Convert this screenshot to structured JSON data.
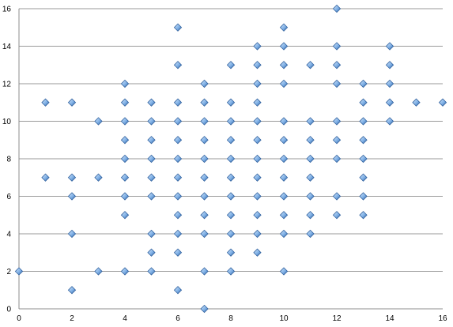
{
  "chart_data": {
    "type": "scatter",
    "title": "",
    "xlabel": "",
    "ylabel": "",
    "xlim": [
      0,
      16
    ],
    "ylim": [
      0,
      16
    ],
    "x_ticks": [
      "0",
      "2",
      "4",
      "6",
      "8",
      "10",
      "12",
      "14",
      "16"
    ],
    "y_ticks": [
      "0",
      "2",
      "4",
      "6",
      "8",
      "10",
      "12",
      "14",
      "16"
    ],
    "grid": "horizontal",
    "legend": "none",
    "marker": "diamond",
    "colors": {
      "marker_fill": "#7fb0e6",
      "marker_stroke": "#2d5e9c",
      "marker_highlight": "#d8e9fb",
      "grid": "#9a9a9a",
      "axis": "#8c8c8c"
    },
    "series": [
      {
        "points": [
          [
            0,
            2
          ],
          [
            1,
            7
          ],
          [
            1,
            11
          ],
          [
            2,
            1
          ],
          [
            2,
            4
          ],
          [
            2,
            6
          ],
          [
            2,
            7
          ],
          [
            2,
            11
          ],
          [
            3,
            2
          ],
          [
            3,
            7
          ],
          [
            3,
            10
          ],
          [
            4,
            2
          ],
          [
            4,
            5
          ],
          [
            4,
            6
          ],
          [
            4,
            7
          ],
          [
            4,
            8
          ],
          [
            4,
            9
          ],
          [
            4,
            10
          ],
          [
            4,
            11
          ],
          [
            4,
            12
          ],
          [
            5,
            2
          ],
          [
            5,
            3
          ],
          [
            5,
            4
          ],
          [
            5,
            6
          ],
          [
            5,
            7
          ],
          [
            5,
            8
          ],
          [
            5,
            9
          ],
          [
            5,
            10
          ],
          [
            5,
            11
          ],
          [
            6,
            1
          ],
          [
            6,
            3
          ],
          [
            6,
            4
          ],
          [
            6,
            5
          ],
          [
            6,
            6
          ],
          [
            6,
            7
          ],
          [
            6,
            8
          ],
          [
            6,
            9
          ],
          [
            6,
            10
          ],
          [
            6,
            11
          ],
          [
            6,
            13
          ],
          [
            6,
            15
          ],
          [
            7,
            0
          ],
          [
            7,
            2
          ],
          [
            7,
            4
          ],
          [
            7,
            5
          ],
          [
            7,
            6
          ],
          [
            7,
            7
          ],
          [
            7,
            8
          ],
          [
            7,
            9
          ],
          [
            7,
            10
          ],
          [
            7,
            11
          ],
          [
            7,
            12
          ],
          [
            8,
            2
          ],
          [
            8,
            3
          ],
          [
            8,
            4
          ],
          [
            8,
            5
          ],
          [
            8,
            6
          ],
          [
            8,
            7
          ],
          [
            8,
            8
          ],
          [
            8,
            9
          ],
          [
            8,
            10
          ],
          [
            8,
            11
          ],
          [
            8,
            13
          ],
          [
            9,
            3
          ],
          [
            9,
            4
          ],
          [
            9,
            5
          ],
          [
            9,
            6
          ],
          [
            9,
            7
          ],
          [
            9,
            8
          ],
          [
            9,
            9
          ],
          [
            9,
            10
          ],
          [
            9,
            11
          ],
          [
            9,
            12
          ],
          [
            9,
            13
          ],
          [
            9,
            14
          ],
          [
            10,
            2
          ],
          [
            10,
            4
          ],
          [
            10,
            5
          ],
          [
            10,
            6
          ],
          [
            10,
            7
          ],
          [
            10,
            8
          ],
          [
            10,
            9
          ],
          [
            10,
            10
          ],
          [
            10,
            12
          ],
          [
            10,
            13
          ],
          [
            10,
            14
          ],
          [
            10,
            15
          ],
          [
            11,
            4
          ],
          [
            11,
            5
          ],
          [
            11,
            6
          ],
          [
            11,
            7
          ],
          [
            11,
            8
          ],
          [
            11,
            9
          ],
          [
            11,
            10
          ],
          [
            11,
            13
          ],
          [
            12,
            5
          ],
          [
            12,
            6
          ],
          [
            12,
            8
          ],
          [
            12,
            9
          ],
          [
            12,
            10
          ],
          [
            12,
            12
          ],
          [
            12,
            13
          ],
          [
            12,
            14
          ],
          [
            12,
            16
          ],
          [
            13,
            5
          ],
          [
            13,
            6
          ],
          [
            13,
            7
          ],
          [
            13,
            8
          ],
          [
            13,
            9
          ],
          [
            13,
            10
          ],
          [
            13,
            11
          ],
          [
            13,
            12
          ],
          [
            14,
            10
          ],
          [
            14,
            11
          ],
          [
            14,
            12
          ],
          [
            14,
            13
          ],
          [
            14,
            14
          ],
          [
            15,
            11
          ],
          [
            16,
            11
          ]
        ]
      }
    ]
  }
}
